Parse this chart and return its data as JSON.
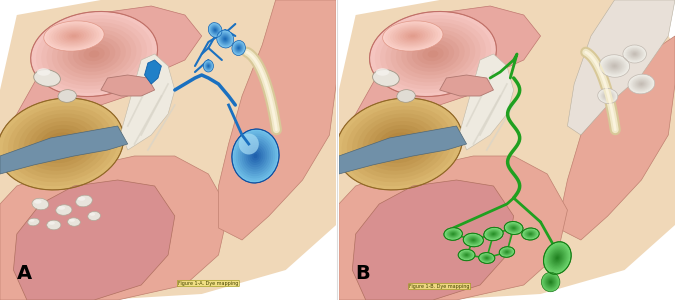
{
  "figure_width": 6.75,
  "figure_height": 3.0,
  "dpi": 100,
  "background_color": "#ffffff",
  "panel_A_label": "A",
  "panel_B_label": "B",
  "subtitle_A": "Figure 1-A. Dye mapping",
  "subtitle_B": "Figure 1-B. Dye mapping"
}
